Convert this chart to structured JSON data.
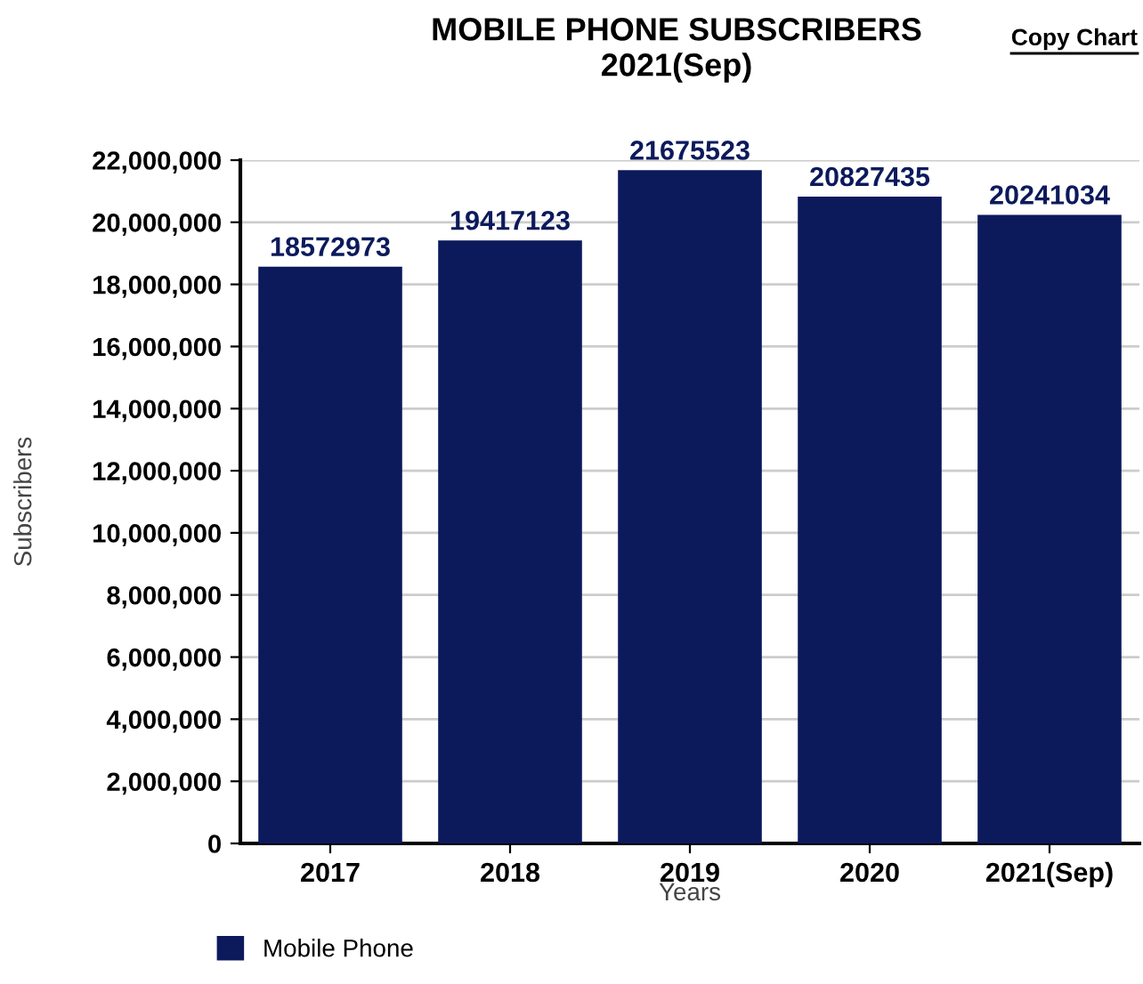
{
  "chart_data": {
    "type": "bar",
    "title": "MOBILE PHONE SUBSCRIBERS",
    "subtitle": "2021(Sep)",
    "xlabel": "Years",
    "ylabel": "Subscribers",
    "categories": [
      "2017",
      "2018",
      "2019",
      "2020",
      "2021(Sep)"
    ],
    "series": [
      {
        "name": "Mobile Phone",
        "color": "#0c1a5c",
        "values": [
          18572973,
          19417123,
          21675523,
          20827435,
          20241034
        ]
      }
    ],
    "ylim": [
      0,
      22000000
    ],
    "yticks": [
      {
        "value": 0,
        "label": "0"
      },
      {
        "value": 2000000,
        "label": "2,000,000"
      },
      {
        "value": 4000000,
        "label": "4,000,000"
      },
      {
        "value": 6000000,
        "label": "6,000,000"
      },
      {
        "value": 8000000,
        "label": "8,000,000"
      },
      {
        "value": 10000000,
        "label": "10,000,000"
      },
      {
        "value": 12000000,
        "label": "12,000,000"
      },
      {
        "value": 14000000,
        "label": "14,000,000"
      },
      {
        "value": 16000000,
        "label": "16,000,000"
      },
      {
        "value": 18000000,
        "label": "18,000,000"
      },
      {
        "value": 20000000,
        "label": "20,000,000"
      },
      {
        "value": 22000000,
        "label": "22,000,000"
      }
    ],
    "grid": "y",
    "legend": "bottom left",
    "data_labels": true,
    "annotations": [
      "Copy Chart"
    ]
  }
}
